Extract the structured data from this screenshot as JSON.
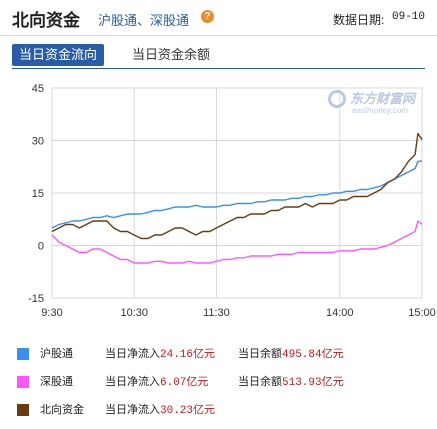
{
  "header": {
    "title": "北向资金",
    "subtitle": "沪股通、深股通",
    "help_glyph": "?",
    "date_label": "数据日期:",
    "date_value": "09-10"
  },
  "tabs": [
    {
      "label": "当日资金流向",
      "active": true
    },
    {
      "label": "当日资金余额",
      "active": false
    }
  ],
  "watermark": {
    "text": "东方财富网",
    "sub": "eastmoney.com"
  },
  "colors": {
    "sh": "#3a8ef0",
    "sz": "#ff55ff",
    "north": "#6b3b10",
    "grid": "#d8d8d8",
    "axis": "#666666",
    "accent": "#2a5ba6",
    "value_red": "#c4161c"
  },
  "legend": [
    {
      "name": "沪股通",
      "flow_label": "当日净流入",
      "flow_value": "24.16亿元",
      "bal_label": "当日余额",
      "bal_value": "495.84亿元",
      "color_key": "sh"
    },
    {
      "name": "深股通",
      "flow_label": "当日净流入",
      "flow_value": "6.07亿元",
      "bal_label": "当日余额",
      "bal_value": "513.93亿元",
      "color_key": "sz"
    },
    {
      "name": "北向资金",
      "flow_label": "当日净流入",
      "flow_value": "30.23亿元",
      "bal_label": "当日余额",
      "bal_value": "",
      "color_key": "north"
    }
  ],
  "chart_data": {
    "type": "line",
    "title": "",
    "xlabel": "",
    "ylabel": "",
    "ylim": [
      -15,
      45
    ],
    "yticks": [
      45,
      30,
      15,
      0,
      -15
    ],
    "xticks": [
      "9:30",
      "10:30",
      "11:30",
      "14:00",
      "15:00"
    ],
    "xtick_minutes": [
      0,
      60,
      120,
      210,
      270
    ],
    "x_minutes": [
      0,
      5,
      10,
      15,
      20,
      25,
      30,
      35,
      40,
      45,
      50,
      55,
      60,
      65,
      70,
      75,
      80,
      85,
      90,
      95,
      100,
      105,
      110,
      115,
      120,
      125,
      130,
      135,
      140,
      145,
      150,
      155,
      160,
      165,
      170,
      175,
      180,
      185,
      190,
      195,
      200,
      205,
      210,
      215,
      220,
      225,
      230,
      235,
      240,
      245,
      250,
      255,
      260,
      265,
      267,
      270
    ],
    "series": [
      {
        "name": "沪股通",
        "color_key": "sh",
        "values": [
          5,
          6,
          6.5,
          7,
          7,
          7.5,
          8,
          8,
          8.5,
          8,
          8.5,
          9,
          9,
          9,
          9.5,
          10,
          10,
          10.5,
          11,
          11,
          11,
          11.5,
          11,
          11,
          11,
          11.5,
          11.5,
          12,
          12,
          12,
          12.5,
          12.5,
          13,
          13,
          13,
          13.5,
          13.5,
          14,
          14,
          14.5,
          14.5,
          15,
          15,
          15.5,
          15.5,
          16,
          16,
          16.5,
          17,
          18,
          19,
          20,
          21,
          22,
          24,
          24.16
        ]
      },
      {
        "name": "深股通",
        "color_key": "sz",
        "values": [
          3,
          1,
          0,
          -1,
          -2,
          -2,
          -1,
          -1,
          -2,
          -3,
          -4,
          -4,
          -5,
          -5,
          -5,
          -4.5,
          -4.5,
          -5,
          -5,
          -5,
          -4.5,
          -5,
          -5,
          -5,
          -4.5,
          -4,
          -4,
          -3.5,
          -3.5,
          -3,
          -3,
          -3,
          -3,
          -2.5,
          -2.5,
          -2.5,
          -2,
          -2,
          -2,
          -2,
          -2,
          -2,
          -1.5,
          -1.5,
          -1.5,
          -1,
          -1,
          -1,
          -0.5,
          0,
          1,
          2,
          3,
          4,
          7,
          6.07
        ]
      },
      {
        "name": "北向资金",
        "color_key": "north",
        "values": [
          4,
          5,
          6,
          6,
          5,
          6,
          7,
          7,
          7,
          5,
          4,
          4,
          3,
          2,
          2,
          3,
          3,
          4,
          5,
          5,
          4,
          3,
          4,
          4,
          5,
          6,
          7,
          8,
          8,
          9,
          9,
          9,
          10,
          10,
          11,
          11,
          11,
          12,
          11,
          12,
          12,
          12,
          13,
          13,
          14,
          14,
          14,
          15,
          16,
          18,
          19,
          21,
          24,
          26,
          32,
          30.23
        ]
      }
    ]
  }
}
